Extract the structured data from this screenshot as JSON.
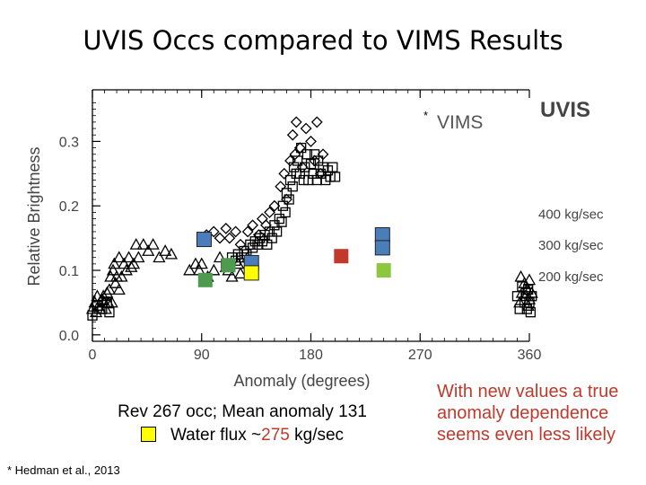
{
  "slide": {
    "title": "UVIS Occs compared to VIMS Results",
    "caption_line1": "Rev 267 occ; Mean anomaly 131",
    "caption_line2_prefix": "Water flux ~",
    "caption_line2_value": "275",
    "caption_line2_suffix": " kg/sec",
    "citation": "* Hedman et al., 2013",
    "conclusion": "With new values a true anomaly dependence seems even less likely"
  },
  "colors": {
    "c400": "#4a7ebb",
    "c300": "#4a7ebb",
    "c200": "#4e9a4e",
    "c200_light": "#8dc63f",
    "red": "#c0392b",
    "yellow": "#ffff00"
  },
  "chart_data": {
    "type": "scatter",
    "xlabel": "Anomaly (degrees)",
    "ylabel": "Relative Brightness",
    "xlim": [
      0,
      360
    ],
    "ylim": [
      -0.01,
      0.38
    ],
    "xticks": [
      0,
      90,
      180,
      270,
      360
    ],
    "yticks": [
      0.0,
      0.1,
      0.2,
      0.3
    ],
    "ytick_labels": [
      "0.0",
      "0.1",
      "0.2",
      "0.3"
    ],
    "legend": [
      {
        "marker": "*",
        "label": "VIMS"
      },
      {
        "label": "UVIS"
      }
    ],
    "flux_labels": [
      {
        "label": "400 kg/sec",
        "y": 0.187
      },
      {
        "label": "300 kg/sec",
        "y": 0.139
      },
      {
        "label": "200 kg/sec",
        "y": 0.09
      }
    ],
    "series": [
      {
        "name": "VIMS triangles",
        "marker": "triangle",
        "points": [
          [
            0,
            0.04
          ],
          [
            2,
            0.05
          ],
          [
            3,
            0.035
          ],
          [
            4,
            0.06
          ],
          [
            5,
            0.045
          ],
          [
            6,
            0.04
          ],
          [
            8,
            0.055
          ],
          [
            9,
            0.06
          ],
          [
            10,
            0.05
          ],
          [
            11,
            0.04
          ],
          [
            12,
            0.065
          ],
          [
            13,
            0.05
          ],
          [
            14,
            0.07
          ],
          [
            15,
            0.09
          ],
          [
            16,
            0.05
          ],
          [
            17,
            0.1
          ],
          [
            18,
            0.11
          ],
          [
            19,
            0.08
          ],
          [
            20,
            0.09
          ],
          [
            22,
            0.12
          ],
          [
            22,
            0.07
          ],
          [
            24,
            0.09
          ],
          [
            26,
            0.11
          ],
          [
            28,
            0.1
          ],
          [
            30,
            0.12
          ],
          [
            32,
            0.105
          ],
          [
            34,
            0.11
          ],
          [
            36,
            0.14
          ],
          [
            38,
            0.12
          ],
          [
            42,
            0.14
          ],
          [
            46,
            0.13
          ],
          [
            50,
            0.14
          ],
          [
            55,
            0.12
          ],
          [
            60,
            0.13
          ],
          [
            65,
            0.125
          ],
          [
            80,
            0.1
          ],
          [
            85,
            0.11
          ],
          [
            88,
            0.1
          ],
          [
            90,
            0.11
          ],
          [
            95,
            0.09
          ],
          [
            100,
            0.1
          ],
          [
            105,
            0.12
          ],
          [
            110,
            0.105
          ],
          [
            112,
            0.1
          ],
          [
            115,
            0.09
          ],
          [
            120,
            0.11
          ],
          [
            122,
            0.095
          ],
          [
            128,
            0.12
          ],
          [
            132,
            0.105
          ],
          [
            352,
            0.05
          ],
          [
            353,
            0.09
          ],
          [
            354,
            0.065
          ],
          [
            356,
            0.08
          ],
          [
            357,
            0.06
          ],
          [
            358,
            0.07
          ],
          [
            359,
            0.045
          ],
          [
            360,
            0.055
          ],
          [
            360,
            0.085
          ],
          [
            362,
            0.065
          ],
          [
            363,
            0.05
          ],
          [
            364,
            0.07
          ]
        ]
      },
      {
        "name": "VIMS diamonds",
        "marker": "diamond",
        "points": [
          [
            94,
            0.155
          ],
          [
            100,
            0.16
          ],
          [
            105,
            0.15
          ],
          [
            110,
            0.165
          ],
          [
            113,
            0.15
          ],
          [
            118,
            0.16
          ],
          [
            122,
            0.14
          ],
          [
            128,
            0.16
          ],
          [
            132,
            0.17
          ],
          [
            137,
            0.155
          ],
          [
            140,
            0.18
          ],
          [
            143,
            0.17
          ],
          [
            146,
            0.19
          ],
          [
            150,
            0.2
          ],
          [
            155,
            0.23
          ],
          [
            158,
            0.25
          ],
          [
            160,
            0.21
          ],
          [
            163,
            0.27
          ],
          [
            165,
            0.31
          ],
          [
            167,
            0.28
          ],
          [
            168,
            0.33
          ],
          [
            171,
            0.29
          ],
          [
            173,
            0.26
          ],
          [
            176,
            0.32
          ],
          [
            180,
            0.3
          ],
          [
            183,
            0.27
          ],
          [
            185,
            0.33
          ],
          [
            188,
            0.25
          ],
          [
            190,
            0.28
          ]
        ]
      },
      {
        "name": "VIMS squares",
        "marker": "square",
        "points": [
          [
            0,
            0.03
          ],
          [
            4,
            0.045
          ],
          [
            8,
            0.04
          ],
          [
            12,
            0.05
          ],
          [
            14,
            0.035
          ],
          [
            110,
            0.11
          ],
          [
            115,
            0.12
          ],
          [
            118,
            0.115
          ],
          [
            120,
            0.125
          ],
          [
            123,
            0.12
          ],
          [
            125,
            0.13
          ],
          [
            127,
            0.125
          ],
          [
            130,
            0.14
          ],
          [
            132,
            0.135
          ],
          [
            134,
            0.145
          ],
          [
            136,
            0.14
          ],
          [
            138,
            0.15
          ],
          [
            140,
            0.145
          ],
          [
            142,
            0.155
          ],
          [
            144,
            0.14
          ],
          [
            146,
            0.16
          ],
          [
            148,
            0.15
          ],
          [
            150,
            0.17
          ],
          [
            152,
            0.16
          ],
          [
            154,
            0.18
          ],
          [
            156,
            0.175
          ],
          [
            157,
            0.2
          ],
          [
            159,
            0.19
          ],
          [
            160,
            0.22
          ],
          [
            162,
            0.21
          ],
          [
            163,
            0.24
          ],
          [
            165,
            0.23
          ],
          [
            166,
            0.26
          ],
          [
            168,
            0.25
          ],
          [
            169,
            0.27
          ],
          [
            171,
            0.25
          ],
          [
            172,
            0.29
          ],
          [
            174,
            0.24
          ],
          [
            175,
            0.26
          ],
          [
            177,
            0.28
          ],
          [
            178,
            0.24
          ],
          [
            180,
            0.265
          ],
          [
            182,
            0.25
          ],
          [
            183,
            0.28
          ],
          [
            185,
            0.24
          ],
          [
            186,
            0.27
          ],
          [
            188,
            0.25
          ],
          [
            190,
            0.26
          ],
          [
            192,
            0.24
          ],
          [
            194,
            0.255
          ],
          [
            196,
            0.245
          ],
          [
            198,
            0.26
          ],
          [
            200,
            0.245
          ],
          [
            350,
            0.06
          ],
          [
            352,
            0.04
          ],
          [
            354,
            0.075
          ],
          [
            356,
            0.05
          ],
          [
            357,
            0.065
          ],
          [
            358,
            0.04
          ],
          [
            359,
            0.07
          ],
          [
            360,
            0.05
          ],
          [
            361,
            0.035
          ],
          [
            362,
            0.06
          ],
          [
            363,
            0.045
          ],
          [
            364,
            0.07
          ]
        ]
      },
      {
        "name": "UVIS occultations",
        "marker": "filled-square",
        "points": [
          {
            "x": 92,
            "y": 0.148,
            "color": "c400",
            "label": "400 kg/sec"
          },
          {
            "x": 93,
            "y": 0.085,
            "color": "c200",
            "label": "200 kg/sec"
          },
          {
            "x": 112,
            "y": 0.108,
            "color": "c200",
            "label": "200 kg/sec"
          },
          {
            "x": 131,
            "y": 0.112,
            "color": "c300",
            "label": "Rev 267"
          },
          {
            "x": 131,
            "y": 0.096,
            "color": "yellow",
            "label": "Rev 267 water flux"
          },
          {
            "x": 205,
            "y": 0.122,
            "color": "red",
            "label": ""
          },
          {
            "x": 239,
            "y": 0.155,
            "color": "c400",
            "label": "400 kg/sec"
          },
          {
            "x": 239,
            "y": 0.135,
            "color": "c300",
            "label": "300 kg/sec"
          },
          {
            "x": 240,
            "y": 0.1,
            "color": "c200_light",
            "label": "200 kg/sec"
          }
        ]
      }
    ]
  }
}
